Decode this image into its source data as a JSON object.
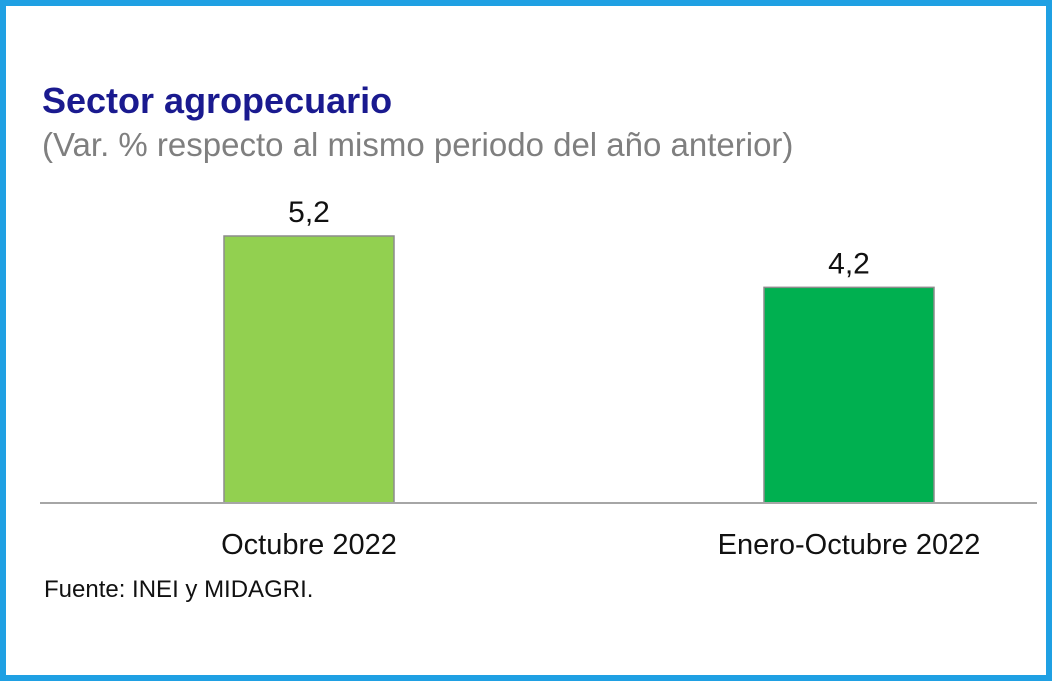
{
  "chart_data": {
    "type": "bar",
    "title": "Sector agropecuario",
    "subtitle": "(Var. % respecto al mismo periodo del año anterior)",
    "categories": [
      "Octubre 2022",
      "Enero-Octubre 2022"
    ],
    "values": [
      5.2,
      4.2
    ],
    "value_labels": [
      "5,2",
      "4,2"
    ],
    "colors": [
      "#92d050",
      "#00b050"
    ],
    "ylim": [
      0,
      5.2
    ],
    "grid": false,
    "legend": "none",
    "xlabel": "",
    "ylabel": ""
  },
  "source": "Fuente: INEI y MIDAGRI."
}
